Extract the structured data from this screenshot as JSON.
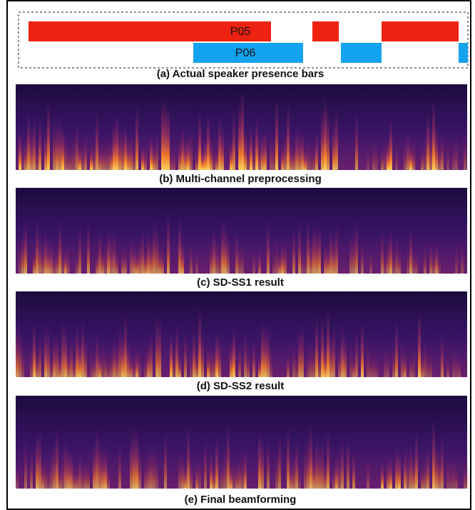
{
  "speakers": [
    {
      "label": "P05"
    },
    {
      "label": "P06"
    }
  ],
  "panels": [
    {
      "caption": "(a) Actual speaker presence bars"
    },
    {
      "caption": "(b) Multi-channel preprocessing"
    },
    {
      "caption": "(c) SD-SS1 result"
    },
    {
      "caption": "(d) SD-SS2 result"
    },
    {
      "caption": "(e) Final beamforming"
    }
  ]
}
